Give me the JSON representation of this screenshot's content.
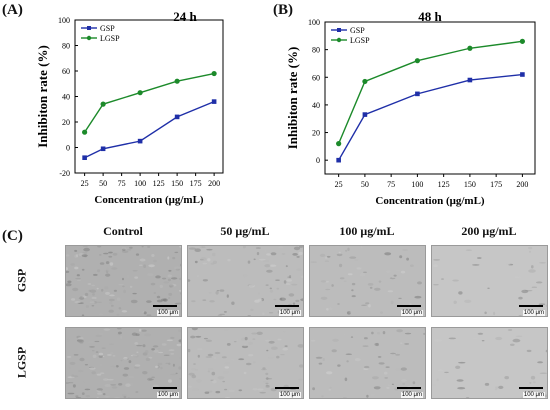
{
  "panels": {
    "a": "(A)",
    "b": "(B)",
    "c": "(C)"
  },
  "chart_data": [
    {
      "type": "line",
      "title": "24 h",
      "xlabel": "Concentration (μg/mL)",
      "ylabel": "Inhibiton rate (%)",
      "x": [
        25,
        50,
        100,
        150,
        200
      ],
      "xticks": [
        "25",
        "50",
        "75",
        "100",
        "125",
        "150",
        "175",
        "200"
      ],
      "yticks": [
        "-20",
        "0",
        "20",
        "40",
        "60",
        "80",
        "100"
      ],
      "xlim": [
        12,
        212
      ],
      "ylim": [
        -20,
        100
      ],
      "legend_position": "top-left",
      "series": [
        {
          "name": "GSP",
          "color": "#1f2fa8",
          "marker": "square",
          "values": [
            -8,
            -1,
            5,
            24,
            36
          ]
        },
        {
          "name": "LGSP",
          "color": "#1c8a2a",
          "marker": "circle",
          "values": [
            12,
            34,
            43,
            52,
            58
          ]
        }
      ]
    },
    {
      "type": "line",
      "title": "48 h",
      "xlabel": "Concentration (μg/mL)",
      "ylabel": "Inhibiton rate (%)",
      "x": [
        25,
        50,
        100,
        150,
        200
      ],
      "xticks": [
        "25",
        "50",
        "75",
        "100",
        "125",
        "150",
        "175",
        "200"
      ],
      "yticks": [
        "0",
        "20",
        "40",
        "60",
        "80",
        "100"
      ],
      "xlim": [
        12,
        212
      ],
      "ylim": [
        -10,
        100
      ],
      "legend_position": "top-left",
      "series": [
        {
          "name": "GSP",
          "color": "#1f2fa8",
          "marker": "square",
          "values": [
            0,
            33,
            48,
            58,
            62
          ]
        },
        {
          "name": "LGSP",
          "color": "#1c8a2a",
          "marker": "circle",
          "values": [
            12,
            57,
            72,
            81,
            86
          ]
        }
      ]
    }
  ],
  "micrographs": {
    "columns": [
      "Control",
      "50 μg/mL",
      "100 μg/mL",
      "200 μg/mL"
    ],
    "rows": [
      "GSP",
      "LGSP"
    ],
    "scale_label": "100 μm"
  }
}
